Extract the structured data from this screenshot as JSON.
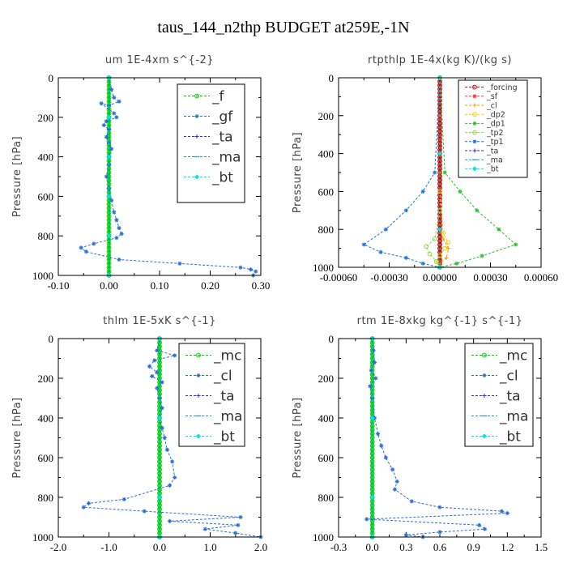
{
  "page": {
    "title": "taus_144_n2thp  BUDGET at259E,-1N"
  },
  "chart_data": [
    {
      "id": "um",
      "type": "line",
      "title": "um   1E-4xm s^{-2}",
      "ylabel": "Pressure [hPa]",
      "xlim": [
        -0.1,
        0.3
      ],
      "ylim": [
        1000,
        0
      ],
      "xticks": [
        -0.1,
        0.0,
        0.1,
        0.2,
        0.3
      ],
      "xtick_labels": [
        "-0.10",
        "0.00",
        "0.10",
        "0.20",
        "0.30"
      ],
      "yticks": [
        0,
        200,
        400,
        600,
        800,
        1000
      ],
      "ytick_labels": [
        "0",
        "200",
        "400",
        "600",
        "800",
        "1000"
      ],
      "legend": {
        "position": "top-right"
      },
      "series": [
        {
          "name": "_f",
          "color": "#00cc00",
          "marker": "circle",
          "x": [
            0,
            0,
            0,
            0,
            0,
            0,
            0,
            0,
            0,
            0,
            0
          ],
          "y": [
            0,
            100,
            200,
            300,
            400,
            500,
            600,
            700,
            800,
            900,
            1000
          ]
        },
        {
          "name": "_gf",
          "color": "#2a6fd6",
          "marker": "star",
          "x": [
            0,
            0.005,
            0.01,
            0.02,
            0.0,
            -0.015,
            0.01,
            0.015,
            -0.005,
            -0.01,
            0.0,
            -0.005,
            0.0,
            0.005,
            0.0,
            0.0,
            -0.005,
            0.0,
            0.005,
            0.01,
            0.015,
            0.02,
            0.025,
            0.015,
            -0.03,
            -0.055,
            -0.045,
            0.02,
            0.14,
            0.26,
            0.28,
            0.29,
            0.285
          ],
          "y": [
            0,
            60,
            100,
            120,
            140,
            130,
            180,
            200,
            220,
            240,
            260,
            300,
            330,
            360,
            400,
            440,
            500,
            560,
            620,
            680,
            720,
            760,
            790,
            810,
            840,
            860,
            880,
            920,
            940,
            960,
            970,
            980,
            1000
          ]
        },
        {
          "name": "_ta",
          "color": "#3333cc",
          "marker": "plus",
          "x": [
            0,
            0,
            0,
            0,
            0,
            0
          ],
          "y": [
            0,
            200,
            400,
            600,
            800,
            1000
          ]
        },
        {
          "name": "_ma",
          "color": "#1e90ff",
          "marker": "dash",
          "x": [
            0,
            0,
            0,
            0,
            0,
            0
          ],
          "y": [
            0,
            200,
            400,
            600,
            800,
            1000
          ]
        },
        {
          "name": "_bt",
          "color": "#00e5e5",
          "marker": "diamond",
          "x": [
            0,
            0,
            0,
            0,
            0,
            0
          ],
          "y": [
            0,
            200,
            400,
            600,
            800,
            1000
          ]
        }
      ]
    },
    {
      "id": "rtpthlp",
      "type": "line",
      "title": "rtpthlp   1E-4x(kg K)/(kg s)",
      "ylabel": "Pressure [hPa]",
      "xlim": [
        -0.0006,
        0.0006
      ],
      "ylim": [
        1000,
        0
      ],
      "xticks": [
        -0.0006,
        -0.0003,
        0.0,
        0.0003,
        0.0006
      ],
      "xtick_labels": [
        "-0.00060",
        "-0.00030",
        "0.00000",
        "0.00030",
        "0.00060"
      ],
      "yticks": [
        0,
        200,
        400,
        600,
        800,
        1000
      ],
      "ytick_labels": [
        "0",
        "200",
        "400",
        "600",
        "800",
        "1000"
      ],
      "legend": {
        "position": "top-right"
      },
      "series": [
        {
          "name": "_forcing",
          "color": "#cc0000",
          "marker": "circle",
          "x": [
            0,
            0,
            0,
            0,
            0,
            0
          ],
          "y": [
            0,
            200,
            400,
            600,
            800,
            1000
          ]
        },
        {
          "name": "_sf",
          "color": "#ff3333",
          "marker": "star",
          "x": [
            0,
            0,
            0,
            0,
            0,
            0
          ],
          "y": [
            0,
            200,
            400,
            600,
            800,
            1000
          ]
        },
        {
          "name": "_cl",
          "color": "#ff9900",
          "marker": "plus",
          "x": [
            0,
            0,
            0,
            2e-05,
            5e-05,
            4e-05,
            0.0,
            0.0
          ],
          "y": [
            0,
            500,
            800,
            850,
            900,
            950,
            980,
            1000
          ]
        },
        {
          "name": "_dp2",
          "color": "#ffcc00",
          "marker": "circle",
          "x": [
            0,
            0,
            2e-05,
            5e-05,
            3e-05,
            0.0,
            -2e-05,
            0.0
          ],
          "y": [
            0,
            600,
            820,
            870,
            900,
            940,
            970,
            1000
          ]
        },
        {
          "name": "_dp1",
          "color": "#33bb33",
          "marker": "star",
          "x": [
            0,
            3e-05,
            0.00012,
            0.00022,
            0.00035,
            0.00045,
            0.00025,
            0.0001,
            0.0
          ],
          "y": [
            0,
            500,
            600,
            700,
            800,
            880,
            940,
            980,
            1000
          ]
        },
        {
          "name": "_tp2",
          "color": "#88dd44",
          "marker": "circle",
          "x": [
            0,
            0,
            -3e-05,
            -8e-05,
            -6e-05,
            -2e-05,
            0.0
          ],
          "y": [
            0,
            700,
            850,
            890,
            930,
            970,
            1000
          ]
        },
        {
          "name": "_tp1",
          "color": "#1f77d4",
          "marker": "star",
          "x": [
            0,
            -3e-05,
            -0.0001,
            -0.0002,
            -0.00032,
            -0.00045,
            -0.00035,
            -0.0002,
            -0.0001,
            0.0
          ],
          "y": [
            0,
            500,
            600,
            700,
            800,
            880,
            920,
            950,
            980,
            1000
          ]
        },
        {
          "name": "_ta",
          "color": "#3333aa",
          "marker": "plus",
          "x": [
            0,
            0,
            0,
            0
          ],
          "y": [
            0,
            400,
            800,
            1000
          ]
        },
        {
          "name": "_ma",
          "color": "#1e90ff",
          "marker": "dash",
          "x": [
            0,
            0,
            0,
            0
          ],
          "y": [
            0,
            400,
            800,
            1000
          ]
        },
        {
          "name": "_bt",
          "color": "#00e5e5",
          "marker": "diamond",
          "x": [
            0,
            0,
            0,
            0
          ],
          "y": [
            0,
            400,
            800,
            1000
          ]
        }
      ]
    },
    {
      "id": "thlm",
      "type": "line",
      "title": "thlm   1E-5xK s^{-1}",
      "ylabel": "Pressure [hPa]",
      "xlim": [
        -2.0,
        2.0
      ],
      "ylim": [
        1000,
        0
      ],
      "xticks": [
        -2.0,
        -1.0,
        0.0,
        1.0,
        2.0
      ],
      "xtick_labels": [
        "-2.0",
        "-1.0",
        "0.0",
        "1.0",
        "2.0"
      ],
      "yticks": [
        0,
        200,
        400,
        600,
        800,
        1000
      ],
      "ytick_labels": [
        "0",
        "200",
        "400",
        "600",
        "800",
        "1000"
      ],
      "legend": {
        "position": "top-right"
      },
      "series": [
        {
          "name": "_mc",
          "color": "#00cc00",
          "marker": "circle",
          "x": [
            0,
            0,
            0,
            0,
            0,
            0,
            0,
            0,
            0,
            0,
            0
          ],
          "y": [
            0,
            100,
            200,
            300,
            400,
            500,
            600,
            700,
            800,
            900,
            1000
          ]
        },
        {
          "name": "_cl",
          "color": "#2a6fd6",
          "marker": "star",
          "x": [
            0,
            -0.05,
            0.3,
            -0.1,
            -0.2,
            -0.05,
            -0.15,
            0.05,
            -0.05,
            0.0,
            0.05,
            0.0,
            0.05,
            0.1,
            0.15,
            0.25,
            0.3,
            0.2,
            -0.7,
            -1.4,
            -1.5,
            -0.3,
            1.6,
            0.2,
            1.55,
            0.9,
            1.5,
            2.0
          ],
          "y": [
            0,
            60,
            85,
            110,
            140,
            170,
            190,
            220,
            250,
            300,
            350,
            400,
            450,
            500,
            560,
            620,
            700,
            740,
            810,
            830,
            850,
            870,
            900,
            920,
            940,
            960,
            980,
            1000
          ]
        },
        {
          "name": "_ta",
          "color": "#3333cc",
          "marker": "plus",
          "x": [
            0,
            0,
            0,
            0
          ],
          "y": [
            0,
            400,
            800,
            1000
          ]
        },
        {
          "name": "_ma",
          "color": "#1e90ff",
          "marker": "dash",
          "x": [
            0,
            0,
            0,
            0
          ],
          "y": [
            0,
            400,
            800,
            1000
          ]
        },
        {
          "name": "_bt",
          "color": "#00e5e5",
          "marker": "diamond",
          "x": [
            0,
            0,
            0,
            0
          ],
          "y": [
            0,
            400,
            800,
            1000
          ]
        }
      ]
    },
    {
      "id": "rtm",
      "type": "line",
      "title": "rtm   1E-8xkg kg^{-1} s^{-1}",
      "ylabel": "Pressure [hPa]",
      "xlim": [
        -0.3,
        1.5
      ],
      "ylim": [
        1000,
        0
      ],
      "xticks": [
        -0.3,
        0.0,
        0.3,
        0.6,
        0.9,
        1.2,
        1.5
      ],
      "xtick_labels": [
        "-0.3",
        "0.0",
        "0.3",
        "0.6",
        "0.9",
        "1.2",
        "1.5"
      ],
      "yticks": [
        0,
        200,
        400,
        600,
        800,
        1000
      ],
      "ytick_labels": [
        "0",
        "200",
        "400",
        "600",
        "800",
        "1000"
      ],
      "legend": {
        "position": "top-right"
      },
      "series": [
        {
          "name": "_mc",
          "color": "#00cc00",
          "marker": "circle",
          "x": [
            0,
            0,
            0,
            0,
            0,
            0,
            0,
            0,
            0,
            0,
            0
          ],
          "y": [
            0,
            100,
            200,
            300,
            400,
            500,
            600,
            700,
            800,
            900,
            1000
          ]
        },
        {
          "name": "_cl",
          "color": "#2a6fd6",
          "marker": "star",
          "x": [
            0,
            0.01,
            0.02,
            -0.01,
            0.03,
            -0.02,
            0.0,
            0.02,
            0.05,
            0.08,
            0.12,
            0.18,
            0.22,
            0.2,
            0.35,
            0.6,
            1.15,
            1.2,
            -0.05,
            0.95,
            1.0,
            0.6,
            0.3,
            0.45
          ],
          "y": [
            0,
            60,
            120,
            160,
            200,
            240,
            300,
            400,
            480,
            540,
            600,
            660,
            720,
            760,
            820,
            850,
            870,
            880,
            910,
            940,
            960,
            975,
            990,
            1000
          ]
        },
        {
          "name": "_ta",
          "color": "#3333cc",
          "marker": "plus",
          "x": [
            0,
            0,
            0,
            0
          ],
          "y": [
            0,
            400,
            800,
            1000
          ]
        },
        {
          "name": "_ma",
          "color": "#1e90ff",
          "marker": "dash",
          "x": [
            0,
            0,
            0,
            0
          ],
          "y": [
            0,
            400,
            800,
            1000
          ]
        },
        {
          "name": "_bt",
          "color": "#00e5e5",
          "marker": "diamond",
          "x": [
            0,
            0,
            0,
            0
          ],
          "y": [
            0,
            400,
            800,
            1000
          ]
        }
      ]
    }
  ]
}
